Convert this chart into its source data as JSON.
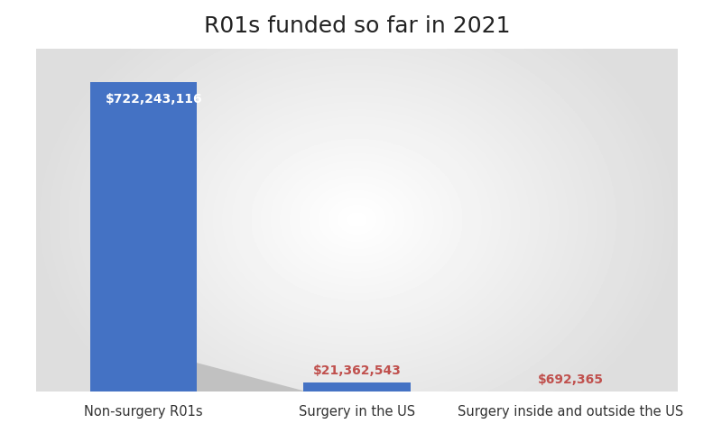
{
  "title": "R01s funded so far in 2021",
  "categories": [
    "Non-surgery R01s",
    "Surgery in the US",
    "Surgery inside and outside the US"
  ],
  "values": [
    722243116,
    21362543,
    692365
  ],
  "labels": [
    "$722,243,116",
    "$21,362,543",
    "$692,365"
  ],
  "bar_color": "#4472C4",
  "label_color_inside": "#FFFFFF",
  "label_color_outside": "#C0504D",
  "title_fontsize": 18,
  "label_fontsize": 10,
  "tick_fontsize": 10.5,
  "bar_width": 0.5,
  "ylim": [
    0,
    800000000
  ],
  "bg_light": "#FFFFFF",
  "bg_edge": "#D8D8D8",
  "shadow_color": "#BBBBBB",
  "x_positions": [
    0,
    1,
    2
  ]
}
